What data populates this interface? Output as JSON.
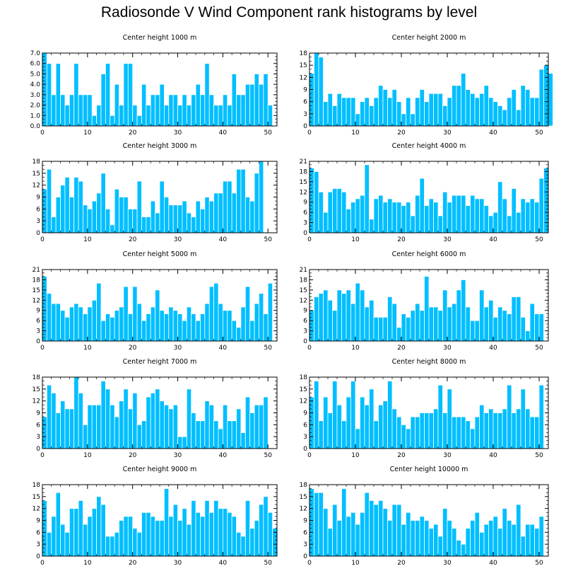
{
  "title": "Radiosonde V Wind Component rank histograms by level",
  "colors": {
    "bar": "#00bfff",
    "bar_edge": "#ffffff",
    "axis": "#000000"
  },
  "chart_data": [
    {
      "type": "bar",
      "title": "Center height 1000 m",
      "xlim": [
        0,
        52
      ],
      "ylim": [
        0,
        7
      ],
      "xticks": [
        0,
        10,
        20,
        30,
        40,
        50
      ],
      "yticks": [
        "0.0",
        "1.0",
        "2.0",
        "3.0",
        "4.0",
        "5.0",
        "6.0",
        "7.0"
      ],
      "ytick_values": [
        0,
        1,
        2,
        3,
        4,
        5,
        6,
        7
      ],
      "values": [
        7,
        6,
        3,
        6,
        3,
        2,
        3,
        6,
        3,
        3,
        3,
        1,
        2,
        5,
        6,
        1,
        4,
        2,
        6,
        6,
        2,
        1,
        4,
        2,
        3,
        3,
        4,
        2,
        3,
        3,
        2,
        3,
        2,
        3,
        4,
        3,
        6,
        3,
        2,
        2,
        3,
        2,
        5,
        3,
        3,
        4,
        4,
        5,
        4,
        5,
        2
      ]
    },
    {
      "type": "bar",
      "title": "Center height 2000 m",
      "xlim": [
        0,
        52
      ],
      "ylim": [
        0,
        18
      ],
      "xticks": [
        0,
        10,
        20,
        30,
        40,
        50
      ],
      "yticks": [
        "0",
        "3",
        "6",
        "9",
        "12",
        "15",
        "18"
      ],
      "ytick_values": [
        0,
        3,
        6,
        9,
        12,
        15,
        18
      ],
      "values": [
        13,
        18,
        17,
        6,
        8,
        5,
        8,
        7,
        7,
        7,
        3,
        6,
        7,
        5,
        7,
        10,
        9,
        7,
        9,
        6,
        3,
        7,
        3,
        7,
        9,
        6,
        8,
        8,
        8,
        5,
        7,
        10,
        10,
        13,
        9,
        8,
        7,
        8,
        10,
        7,
        6,
        5,
        4,
        7,
        9,
        4,
        10,
        9,
        7,
        7,
        14,
        15,
        13
      ]
    },
    {
      "type": "bar",
      "title": "Center height 3000 m",
      "xlim": [
        0,
        52
      ],
      "ylim": [
        0,
        18
      ],
      "xticks": [
        0,
        10,
        20,
        30,
        40,
        50
      ],
      "yticks": [
        "0",
        "3",
        "6",
        "9",
        "12",
        "15",
        "18"
      ],
      "ytick_values": [
        0,
        3,
        6,
        9,
        12,
        15,
        18
      ],
      "values": [
        11,
        16,
        4,
        9,
        12,
        14,
        9,
        14,
        13,
        7,
        6,
        8,
        10,
        15,
        6,
        2,
        11,
        9,
        9,
        6,
        6,
        13,
        4,
        4,
        8,
        5,
        13,
        9,
        7,
        7,
        7,
        8,
        5,
        4,
        8,
        6,
        9,
        8,
        10,
        10,
        13,
        13,
        10,
        16,
        16,
        9,
        8,
        15,
        18
      ]
    },
    {
      "type": "bar",
      "title": "Center height 4000 m",
      "xlim": [
        0,
        52
      ],
      "ylim": [
        0,
        21
      ],
      "xticks": [
        0,
        10,
        20,
        30,
        40,
        50
      ],
      "yticks": [
        "0",
        "3",
        "6",
        "9",
        "12",
        "15",
        "18",
        "21"
      ],
      "ytick_values": [
        0,
        3,
        6,
        9,
        12,
        15,
        18,
        21
      ],
      "values": [
        19,
        18,
        12,
        6,
        12,
        13,
        13,
        12,
        7,
        9,
        10,
        11,
        20,
        4,
        10,
        11,
        9,
        10,
        9,
        9,
        8,
        9,
        5,
        11,
        16,
        8,
        10,
        9,
        5,
        12,
        9,
        11,
        11,
        11,
        8,
        11,
        10,
        10,
        8,
        5,
        6,
        15,
        10,
        5,
        13,
        6,
        10,
        9,
        10,
        9,
        16,
        19
      ]
    },
    {
      "type": "bar",
      "title": "Center height 5000 m",
      "xlim": [
        0,
        52
      ],
      "ylim": [
        0,
        21
      ],
      "xticks": [
        0,
        10,
        20,
        30,
        40,
        50
      ],
      "yticks": [
        "0",
        "3",
        "6",
        "9",
        "12",
        "15",
        "18",
        "21"
      ],
      "ytick_values": [
        0,
        3,
        6,
        9,
        12,
        15,
        18,
        21
      ],
      "values": [
        19,
        14,
        11,
        11,
        9,
        7,
        10,
        11,
        10,
        8,
        10,
        12,
        17,
        6,
        8,
        7,
        9,
        10,
        16,
        8,
        16,
        11,
        6,
        8,
        10,
        15,
        9,
        8,
        10,
        9,
        8,
        6,
        10,
        8,
        6,
        8,
        11,
        16,
        17,
        11,
        9,
        9,
        6,
        4,
        10,
        16,
        6,
        11,
        14,
        8,
        17
      ]
    },
    {
      "type": "bar",
      "title": "Center height 6000 m",
      "xlim": [
        0,
        52
      ],
      "ylim": [
        0,
        21
      ],
      "xticks": [
        0,
        10,
        20,
        30,
        40,
        50
      ],
      "yticks": [
        "0",
        "3",
        "6",
        "9",
        "12",
        "15",
        "18",
        "21"
      ],
      "ytick_values": [
        0,
        3,
        6,
        9,
        12,
        15,
        18,
        21
      ],
      "values": [
        9,
        13,
        14,
        15,
        12,
        9,
        15,
        14,
        15,
        11,
        17,
        15,
        10,
        12,
        7,
        7,
        7,
        13,
        11,
        4,
        8,
        7,
        9,
        11,
        9,
        19,
        10,
        10,
        9,
        15,
        10,
        11,
        15,
        18,
        10,
        6,
        6,
        15,
        10,
        12,
        7,
        10,
        9,
        8,
        13,
        13,
        7,
        3,
        11,
        8,
        8
      ]
    },
    {
      "type": "bar",
      "title": "Center height 7000 m",
      "xlim": [
        0,
        52
      ],
      "ylim": [
        0,
        18
      ],
      "xticks": [
        0,
        10,
        20,
        30,
        40,
        50
      ],
      "yticks": [
        "0",
        "3",
        "6",
        "9",
        "12",
        "15",
        "18"
      ],
      "ytick_values": [
        0,
        3,
        6,
        9,
        12,
        15,
        18
      ],
      "values": [
        8,
        16,
        14,
        9,
        12,
        10,
        10,
        18,
        14,
        6,
        11,
        11,
        11,
        17,
        15,
        11,
        8,
        12,
        15,
        10,
        14,
        6,
        7,
        13,
        14,
        15,
        12,
        11,
        10,
        11,
        3,
        3,
        15,
        9,
        7,
        7,
        12,
        11,
        7,
        5,
        11,
        7,
        7,
        10,
        4,
        13,
        9,
        11,
        11,
        13
      ]
    },
    {
      "type": "bar",
      "title": "Center height 8000 m",
      "xlim": [
        0,
        52
      ],
      "ylim": [
        0,
        18
      ],
      "xticks": [
        0,
        10,
        20,
        30,
        40,
        50
      ],
      "yticks": [
        "0",
        "3",
        "6",
        "9",
        "12",
        "15",
        "18"
      ],
      "ytick_values": [
        0,
        3,
        6,
        9,
        12,
        15,
        18
      ],
      "values": [
        13,
        17,
        7,
        13,
        9,
        17,
        11,
        7,
        13,
        17,
        5,
        13,
        11,
        15,
        7,
        11,
        12,
        17,
        10,
        8,
        6,
        5,
        8,
        8,
        9,
        9,
        9,
        10,
        16,
        9,
        15,
        8,
        8,
        8,
        7,
        5,
        8,
        11,
        9,
        10,
        9,
        9,
        10,
        16,
        9,
        10,
        15,
        10,
        8,
        8,
        16
      ]
    },
    {
      "type": "bar",
      "title": "Center height 9000 m",
      "xlim": [
        0,
        52
      ],
      "ylim": [
        0,
        18
      ],
      "xticks": [
        0,
        10,
        20,
        30,
        40,
        50
      ],
      "yticks": [
        "0",
        "3",
        "6",
        "9",
        "12",
        "15",
        "18"
      ],
      "ytick_values": [
        0,
        3,
        6,
        9,
        12,
        15,
        18
      ],
      "values": [
        14,
        6,
        10,
        16,
        8,
        6,
        12,
        12,
        14,
        8,
        10,
        12,
        15,
        13,
        5,
        5,
        6,
        9,
        10,
        10,
        7,
        6,
        11,
        11,
        10,
        9,
        9,
        17,
        10,
        13,
        9,
        12,
        8,
        14,
        11,
        10,
        14,
        11,
        14,
        12,
        12,
        11,
        10,
        6,
        5,
        14,
        7,
        9,
        13,
        15,
        11,
        7
      ]
    },
    {
      "type": "bar",
      "title": "Center height 10000 m",
      "xlim": [
        0,
        52
      ],
      "ylim": [
        0,
        18
      ],
      "xticks": [
        0,
        10,
        20,
        30,
        40,
        50
      ],
      "yticks": [
        "0",
        "3",
        "6",
        "9",
        "12",
        "15",
        "18"
      ],
      "ytick_values": [
        0,
        3,
        6,
        9,
        12,
        15,
        18
      ],
      "values": [
        17,
        16,
        16,
        12,
        7,
        13,
        9,
        17,
        10,
        11,
        8,
        11,
        16,
        14,
        13,
        14,
        12,
        9,
        13,
        13,
        8,
        11,
        9,
        9,
        10,
        9,
        7,
        8,
        5,
        12,
        9,
        7,
        4,
        3,
        7,
        9,
        11,
        6,
        8,
        9,
        10,
        7,
        12,
        9,
        8,
        13,
        5,
        8,
        8,
        7,
        10
      ]
    }
  ]
}
